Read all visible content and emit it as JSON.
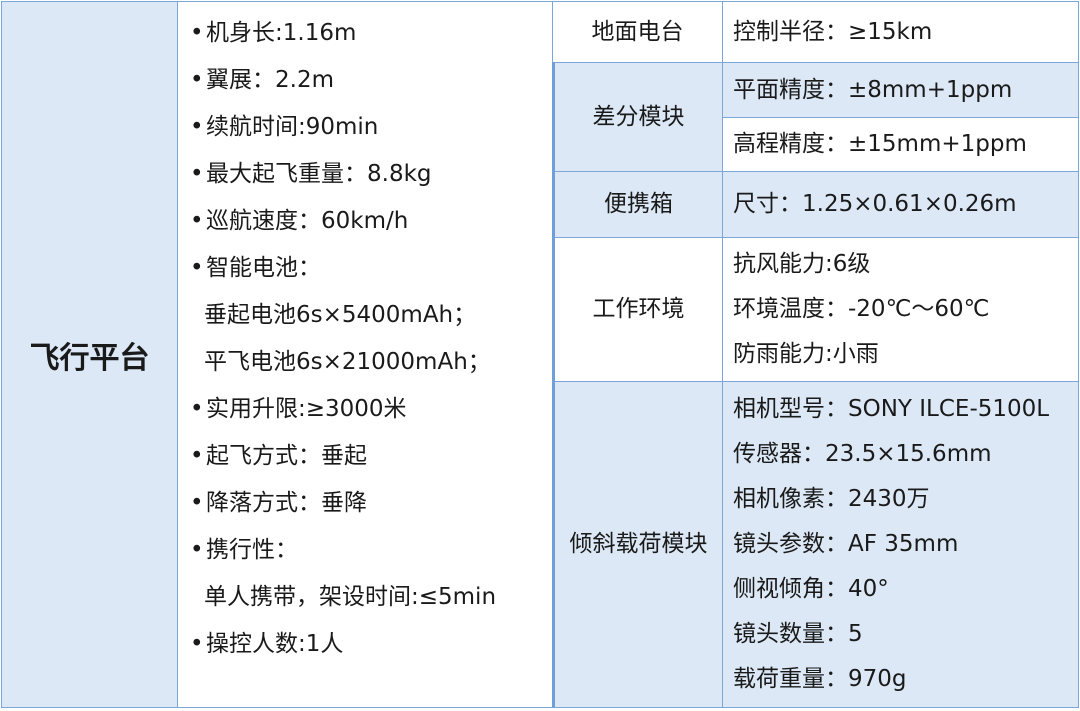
{
  "flight_platform": {
    "label": "飞行平台",
    "specs": [
      {
        "text": "机身长:1.16m",
        "bullet": true
      },
      {
        "text": "翼展：2.2m",
        "bullet": true
      },
      {
        "text": "续航时间:90min",
        "bullet": true
      },
      {
        "text": "最大起飞重量：8.8kg",
        "bullet": true
      },
      {
        "text": "巡航速度：60km/h",
        "bullet": true
      },
      {
        "text": "智能电池：",
        "bullet": true
      },
      {
        "text": "垂起电池6s×5400mAh；",
        "bullet": false
      },
      {
        "text": "平飞电池6s×21000mAh；",
        "bullet": false
      },
      {
        "text": "实用升限:≥3000米",
        "bullet": true
      },
      {
        "text": "起飞方式：垂起",
        "bullet": true
      },
      {
        "text": "降落方式：垂降",
        "bullet": true
      },
      {
        "text": "携行性：",
        "bullet": true
      },
      {
        "text": "单人携带，架设时间:≤5min",
        "bullet": false
      },
      {
        "text": "操控人数:1人",
        "bullet": true
      }
    ]
  },
  "modules": [
    {
      "label": "地面电台",
      "specs": [
        "控制半径：≥15km"
      ]
    },
    {
      "label": "差分模块",
      "specs": [
        "平面精度：±8mm+1ppm",
        "高程精度：±15mm+1ppm"
      ]
    },
    {
      "label": "便携箱",
      "specs": [
        "尺寸：1.25×0.61×0.26m"
      ]
    },
    {
      "label": "工作环境",
      "specs": [
        "抗风能力:6级",
        "环境温度：-20℃～60℃",
        "防雨能力:小雨"
      ]
    },
    {
      "label": "倾斜载荷模块",
      "specs": [
        "相机型号：SONY ILCE-5100L",
        "传感器：23.5×15.6mm",
        "相机像素：2430万",
        "镜头参数：AF 35mm",
        "侧视倾角：40°",
        "镜头数量：5",
        "载荷重量：970g"
      ]
    }
  ],
  "colors": {
    "header_fill": "#dce8f5",
    "border": "#7aa6da"
  }
}
